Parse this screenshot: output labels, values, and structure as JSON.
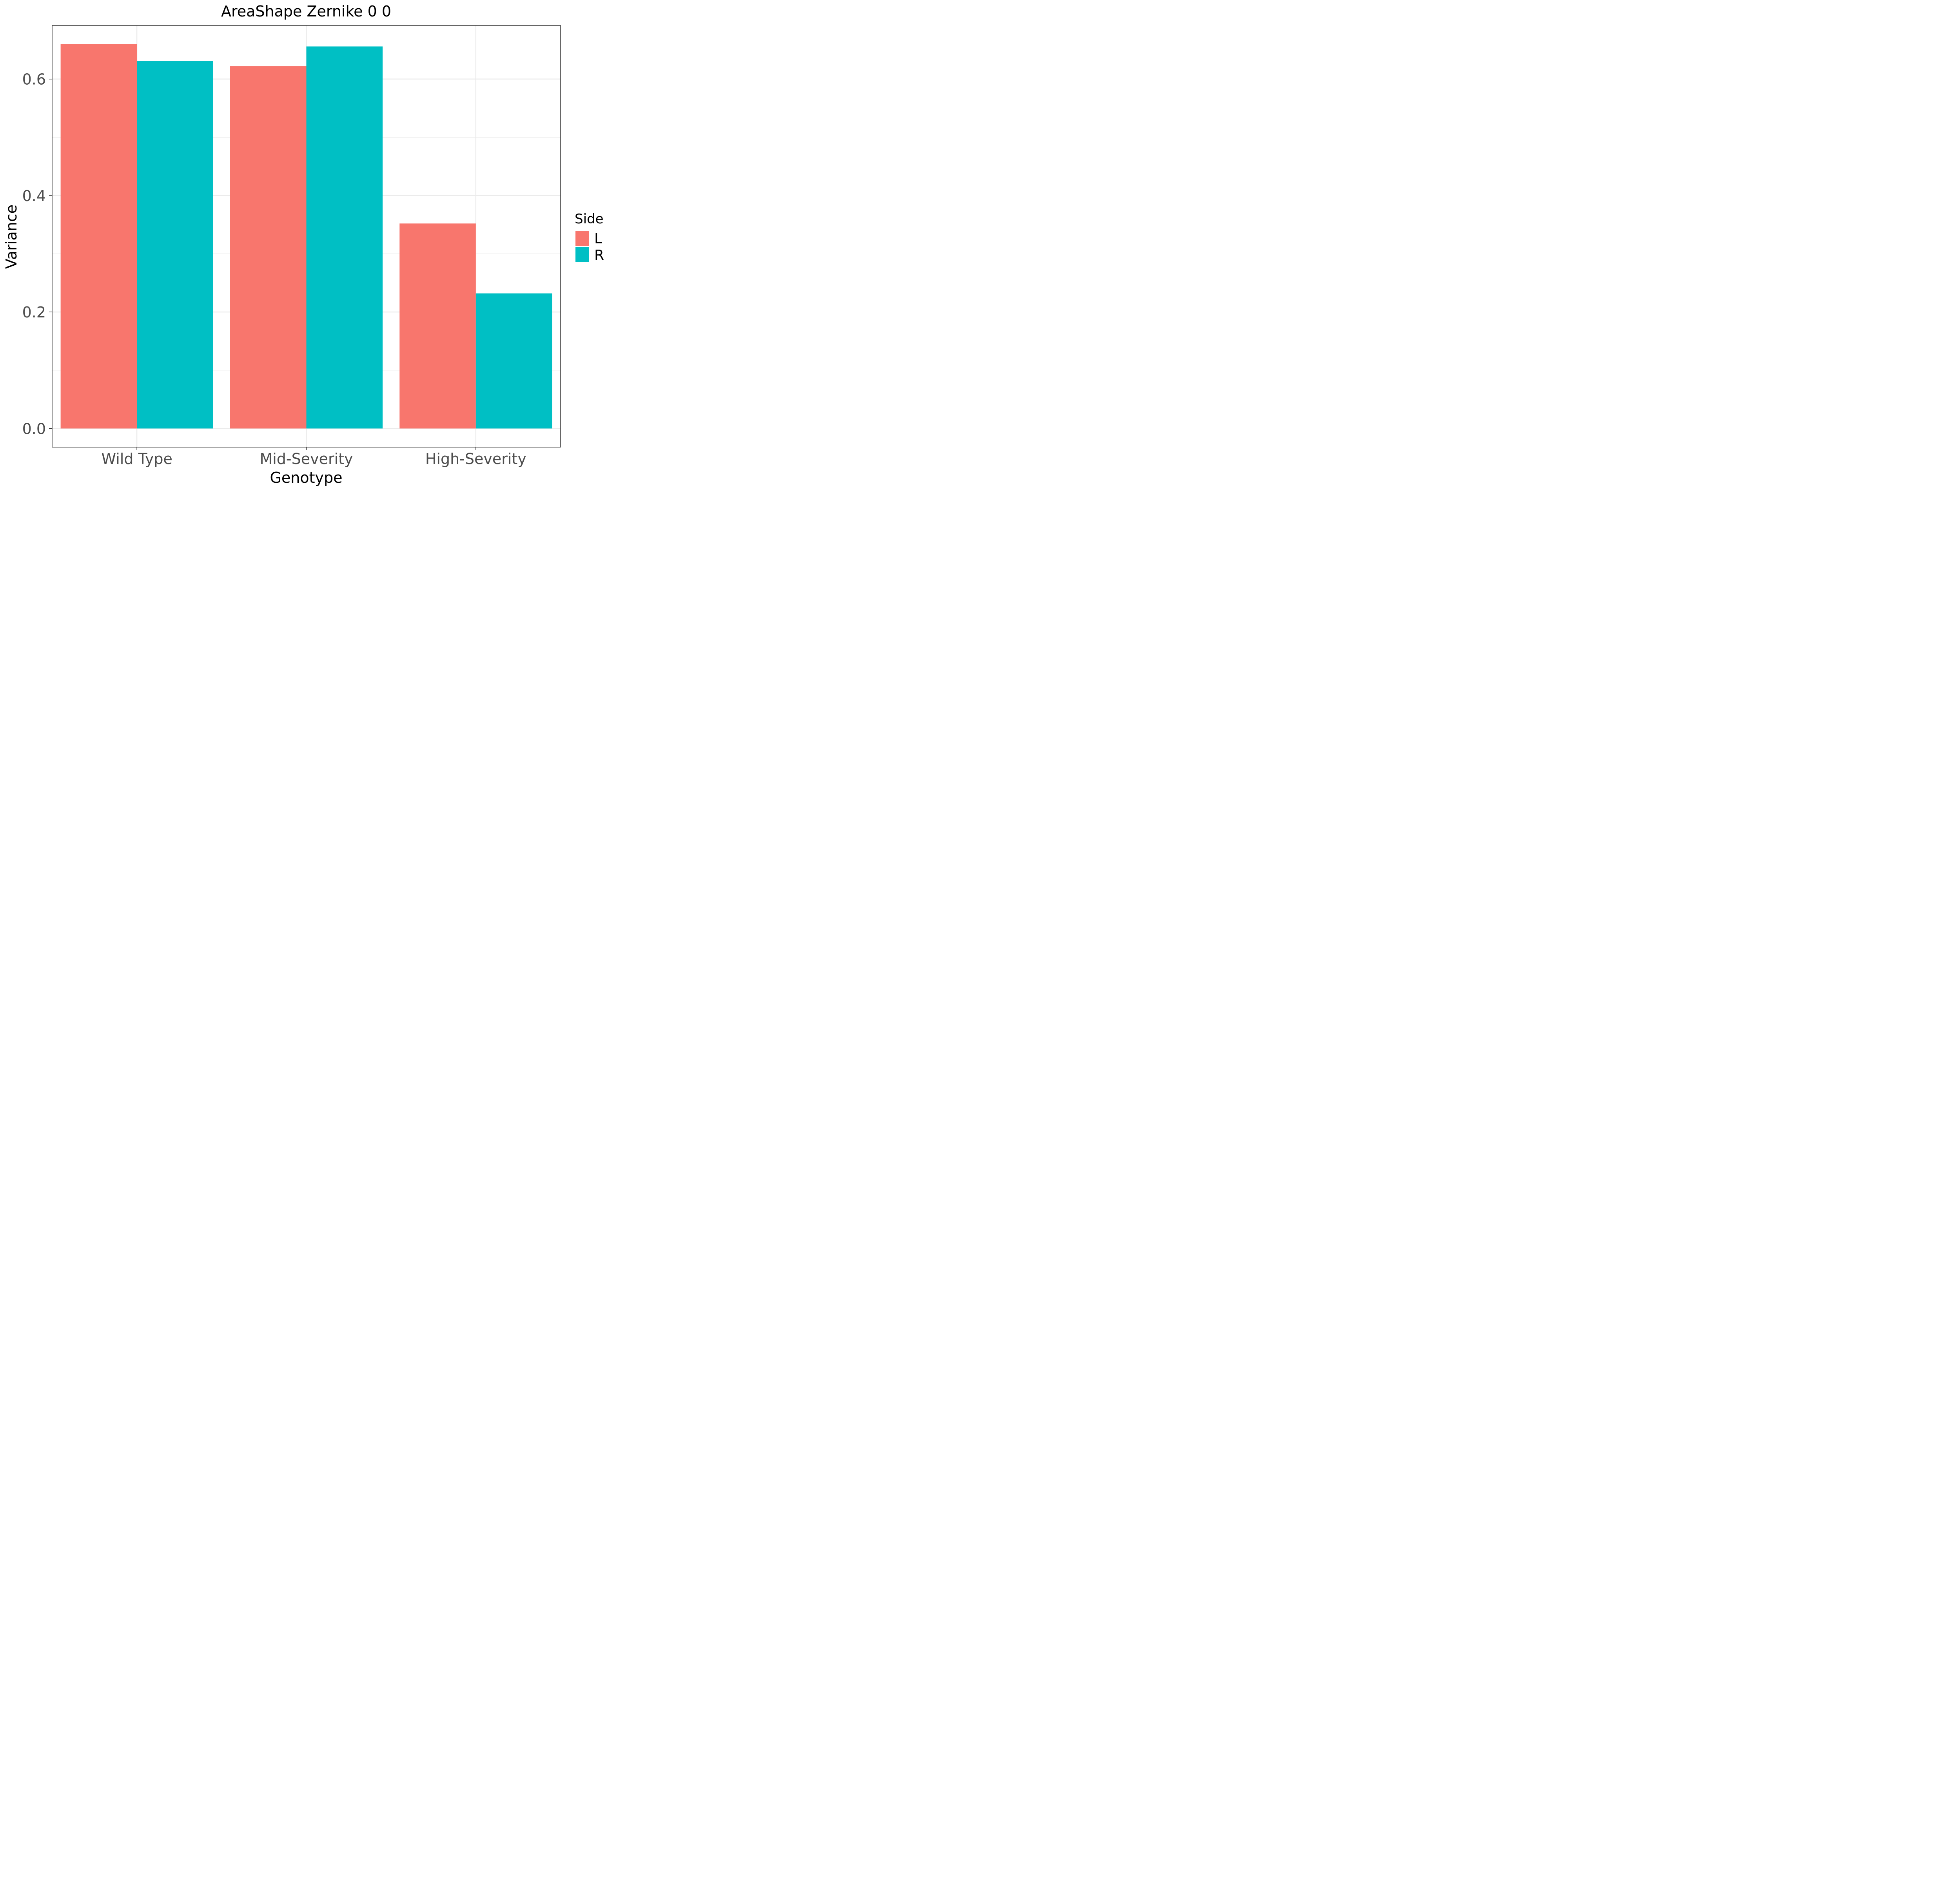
{
  "chart_data": {
    "type": "bar",
    "title": "AreaShape Zernike 0 0",
    "xlabel": "Genotype",
    "ylabel": "Variance",
    "categories": [
      "Wild Type",
      "Mid-Severity",
      "High-Severity"
    ],
    "series": [
      {
        "name": "L",
        "values": [
          0.66,
          0.622,
          0.352
        ],
        "color": "#F8766D"
      },
      {
        "name": "R",
        "values": [
          0.631,
          0.656,
          0.232
        ],
        "color": "#00BFC4"
      }
    ],
    "ylim": [
      -0.032,
      0.692
    ],
    "yticks": [
      "0.0",
      "0.2",
      "0.4",
      "0.6"
    ],
    "legend": {
      "title": "Side",
      "labels": [
        "L",
        "R"
      ],
      "position": "right"
    },
    "grid": true
  }
}
